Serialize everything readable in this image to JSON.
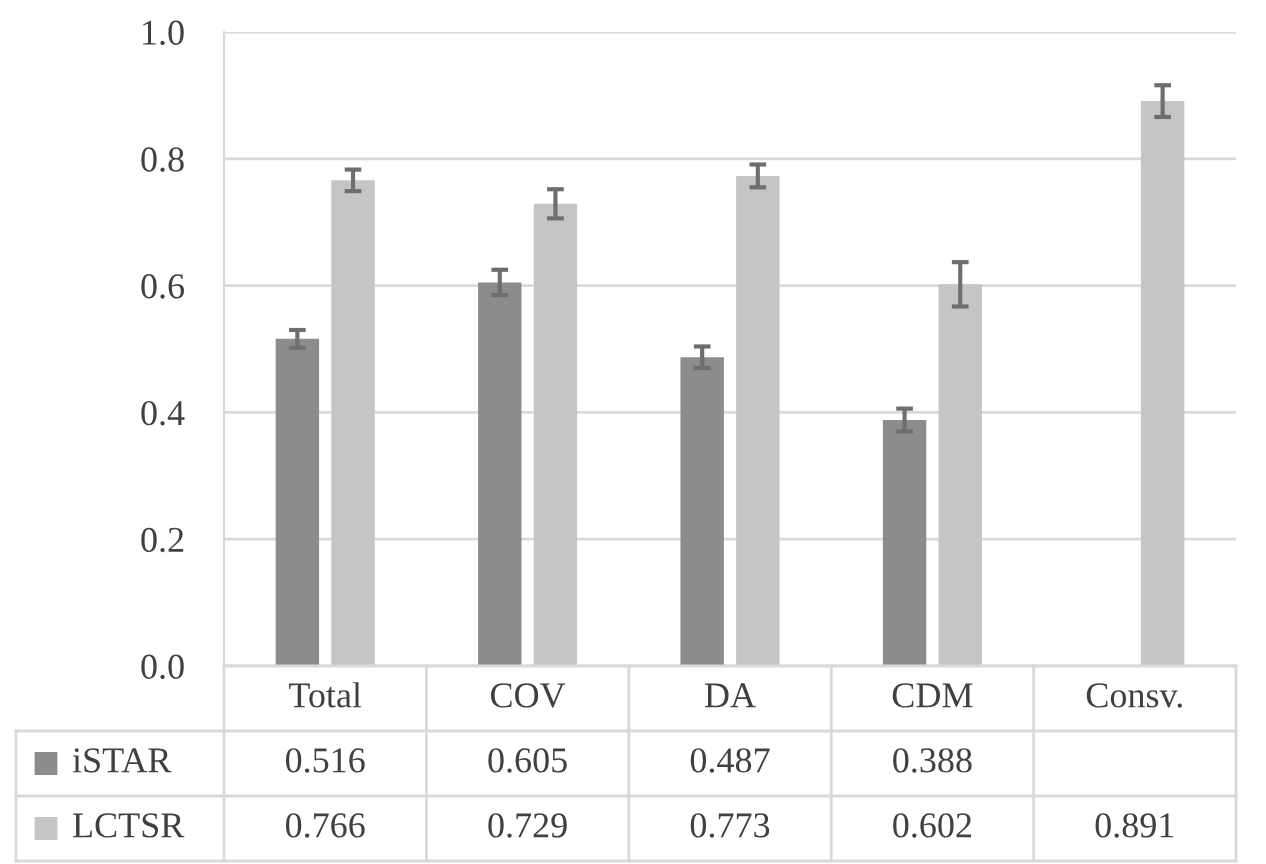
{
  "chart_data": {
    "type": "bar",
    "categories": [
      "Total",
      "COV",
      "DA",
      "CDM",
      "Consv."
    ],
    "series": [
      {
        "name": "iSTAR",
        "color": "#8c8c8c",
        "values": [
          0.516,
          0.605,
          0.487,
          0.388,
          null
        ],
        "errors": [
          0.014,
          0.02,
          0.017,
          0.018,
          null
        ]
      },
      {
        "name": "LCTSR",
        "color": "#c5c5c7",
        "values": [
          0.766,
          0.729,
          0.773,
          0.602,
          0.891
        ],
        "errors": [
          0.017,
          0.023,
          0.018,
          0.035,
          0.025
        ]
      }
    ],
    "ylim": [
      0,
      1
    ],
    "yticks": [
      {
        "value": 0,
        "label": "0.0"
      },
      {
        "value": 0.2,
        "label": "0.2"
      },
      {
        "value": 0.4,
        "label": "0.4"
      },
      {
        "value": 0.6,
        "label": "0.6"
      },
      {
        "value": 0.8,
        "label": "0.8"
      },
      {
        "value": 1,
        "label": "1.0"
      }
    ],
    "grid": "y",
    "data_labels": true,
    "legend": "bottom"
  }
}
